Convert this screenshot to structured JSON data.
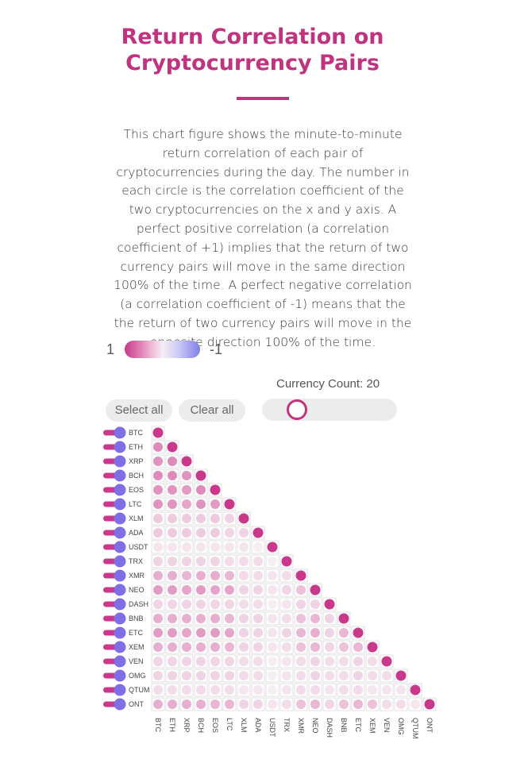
{
  "title_lines": [
    "Return Correlation on",
    "Cryptocurrency Pairs"
  ],
  "description": "This chart figure shows the minute-to-minute return correlation of each pair of cryptocurrencies during the day. The number in each circle is the correlation coefficient of the two cryptocurrencies on the x and y axis. A perfect positive correlation (a correlation coefficient of +1) implies that the return of two currency pairs will move in the same direction 100% of the time. A perfect negative correlation (a correlation coefficient of -1) means that the the return of two currency pairs will move in the opposite direction 100% of the time.",
  "legend": {
    "high_label": "1",
    "low_label": "-1",
    "high_color": "#c9388a",
    "mid_color": "#f7eef4",
    "low_color": "#7f7fe8"
  },
  "controls": {
    "currency_count_label": "Currency Count: 20",
    "currency_count": 20,
    "select_all_label": "Select all",
    "clear_all_label": "Clear all"
  },
  "colors": {
    "accent": "#c0347f",
    "toggle_track": "#c9388a",
    "toggle_knob": "#7f6fe6"
  },
  "chart_data": {
    "type": "heatmap",
    "title": "",
    "categories": [
      "BTC",
      "ETH",
      "XRP",
      "BCH",
      "EOS",
      "LTC",
      "XLM",
      "ADA",
      "USDT",
      "TRX",
      "XMR",
      "NEO",
      "DASH",
      "BNB",
      "ETC",
      "XEM",
      "VEN",
      "OMG",
      "QTUM",
      "ONT"
    ],
    "value_range": [
      -1,
      1
    ],
    "matrix": [
      [
        1.0
      ],
      [
        0.55,
        1.0
      ],
      [
        0.5,
        0.55,
        1.0
      ],
      [
        0.55,
        0.55,
        0.5,
        1.0
      ],
      [
        0.5,
        0.5,
        0.45,
        0.55,
        1.0
      ],
      [
        0.5,
        0.5,
        0.4,
        0.5,
        0.45,
        1.0
      ],
      [
        0.2,
        0.2,
        0.2,
        0.2,
        0.2,
        0.15,
        1.0
      ],
      [
        0.2,
        0.2,
        0.2,
        0.2,
        0.2,
        0.15,
        0.15,
        1.0
      ],
      [
        0.05,
        0.05,
        0.05,
        0.05,
        0.05,
        0.05,
        0.05,
        0.0,
        1.0
      ],
      [
        0.15,
        0.15,
        0.15,
        0.15,
        0.15,
        0.1,
        0.1,
        0.1,
        0.0,
        1.0
      ],
      [
        0.35,
        0.35,
        0.3,
        0.35,
        0.35,
        0.3,
        0.1,
        0.1,
        0.05,
        0.1,
        1.0
      ],
      [
        0.45,
        0.45,
        0.4,
        0.45,
        0.4,
        0.4,
        0.15,
        0.15,
        0.05,
        0.15,
        0.25,
        1.0
      ],
      [
        0.15,
        0.15,
        0.15,
        0.15,
        0.15,
        0.15,
        0.1,
        0.1,
        0.0,
        0.05,
        0.15,
        0.15,
        1.0
      ],
      [
        0.35,
        0.35,
        0.35,
        0.35,
        0.35,
        0.3,
        0.15,
        0.15,
        0.05,
        0.1,
        0.25,
        0.3,
        0.15,
        1.0
      ],
      [
        0.45,
        0.45,
        0.4,
        0.45,
        0.45,
        0.4,
        0.15,
        0.15,
        0.05,
        0.15,
        0.3,
        0.35,
        0.15,
        0.3,
        1.0
      ],
      [
        0.35,
        0.35,
        0.35,
        0.35,
        0.35,
        0.3,
        0.15,
        0.15,
        0.05,
        0.1,
        0.25,
        0.3,
        0.15,
        0.25,
        0.3,
        1.0
      ],
      [
        0.15,
        0.15,
        0.15,
        0.15,
        0.15,
        0.15,
        0.1,
        0.1,
        0.0,
        0.05,
        0.1,
        0.15,
        0.1,
        0.1,
        0.15,
        0.1,
        1.0
      ],
      [
        0.15,
        0.15,
        0.15,
        0.15,
        0.15,
        0.15,
        0.1,
        0.1,
        0.0,
        0.05,
        0.1,
        0.15,
        0.1,
        0.1,
        0.15,
        0.1,
        0.1,
        1.0
      ],
      [
        0.1,
        0.1,
        0.1,
        0.1,
        0.1,
        0.1,
        0.05,
        0.05,
        0.0,
        0.05,
        0.1,
        0.1,
        0.05,
        0.1,
        0.1,
        0.05,
        0.05,
        0.05,
        1.0
      ],
      [
        0.35,
        0.35,
        0.35,
        0.35,
        0.3,
        0.3,
        0.15,
        0.15,
        0.05,
        0.1,
        0.25,
        0.3,
        0.15,
        0.25,
        0.3,
        0.25,
        0.1,
        0.1,
        0.05,
        1.0
      ]
    ],
    "row_toggles_enabled": true,
    "grid": true
  }
}
